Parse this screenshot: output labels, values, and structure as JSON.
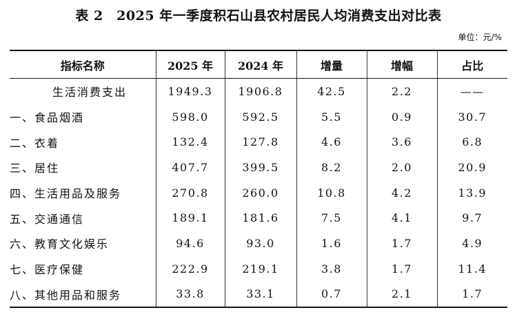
{
  "title": "表 2　2025 年一季度积石山县农村居民人均消费支出对比表",
  "unit": "单位：元/%",
  "headers": [
    "指标名称",
    "2025 年",
    "2024 年",
    "增量",
    "增幅",
    "占比"
  ],
  "rows": [
    {
      "name": "生活消费支出",
      "v2025": "1949.3",
      "v2024": "1906.8",
      "increase": "42.5",
      "growth": "2.2",
      "share": "——"
    },
    {
      "name": "一、食品烟酒",
      "v2025": "598.0",
      "v2024": "592.5",
      "increase": "5.5",
      "growth": "0.9",
      "share": "30.7"
    },
    {
      "name": "二、衣着",
      "v2025": "132.4",
      "v2024": "127.8",
      "increase": "4.6",
      "growth": "3.6",
      "share": "6.8"
    },
    {
      "name": "三、居住",
      "v2025": "407.7",
      "v2024": "399.5",
      "increase": "8.2",
      "growth": "2.0",
      "share": "20.9"
    },
    {
      "name": "四、生活用品及服务",
      "v2025": "270.8",
      "v2024": "260.0",
      "increase": "10.8",
      "growth": "4.2",
      "share": "13.9"
    },
    {
      "name": "五、交通通信",
      "v2025": "189.1",
      "v2024": "181.6",
      "increase": "7.5",
      "growth": "4.1",
      "share": "9.7"
    },
    {
      "name": "六、教育文化娱乐",
      "v2025": "94.6",
      "v2024": "93.0",
      "increase": "1.6",
      "growth": "1.7",
      "share": "4.9"
    },
    {
      "name": "七、医疗保健",
      "v2025": "222.9",
      "v2024": "219.1",
      "increase": "3.8",
      "growth": "1.7",
      "share": "11.4"
    },
    {
      "name": "八、其他用品和服务",
      "v2025": "33.8",
      "v2024": "33.1",
      "increase": "0.7",
      "growth": "2.1",
      "share": "1.7"
    }
  ]
}
